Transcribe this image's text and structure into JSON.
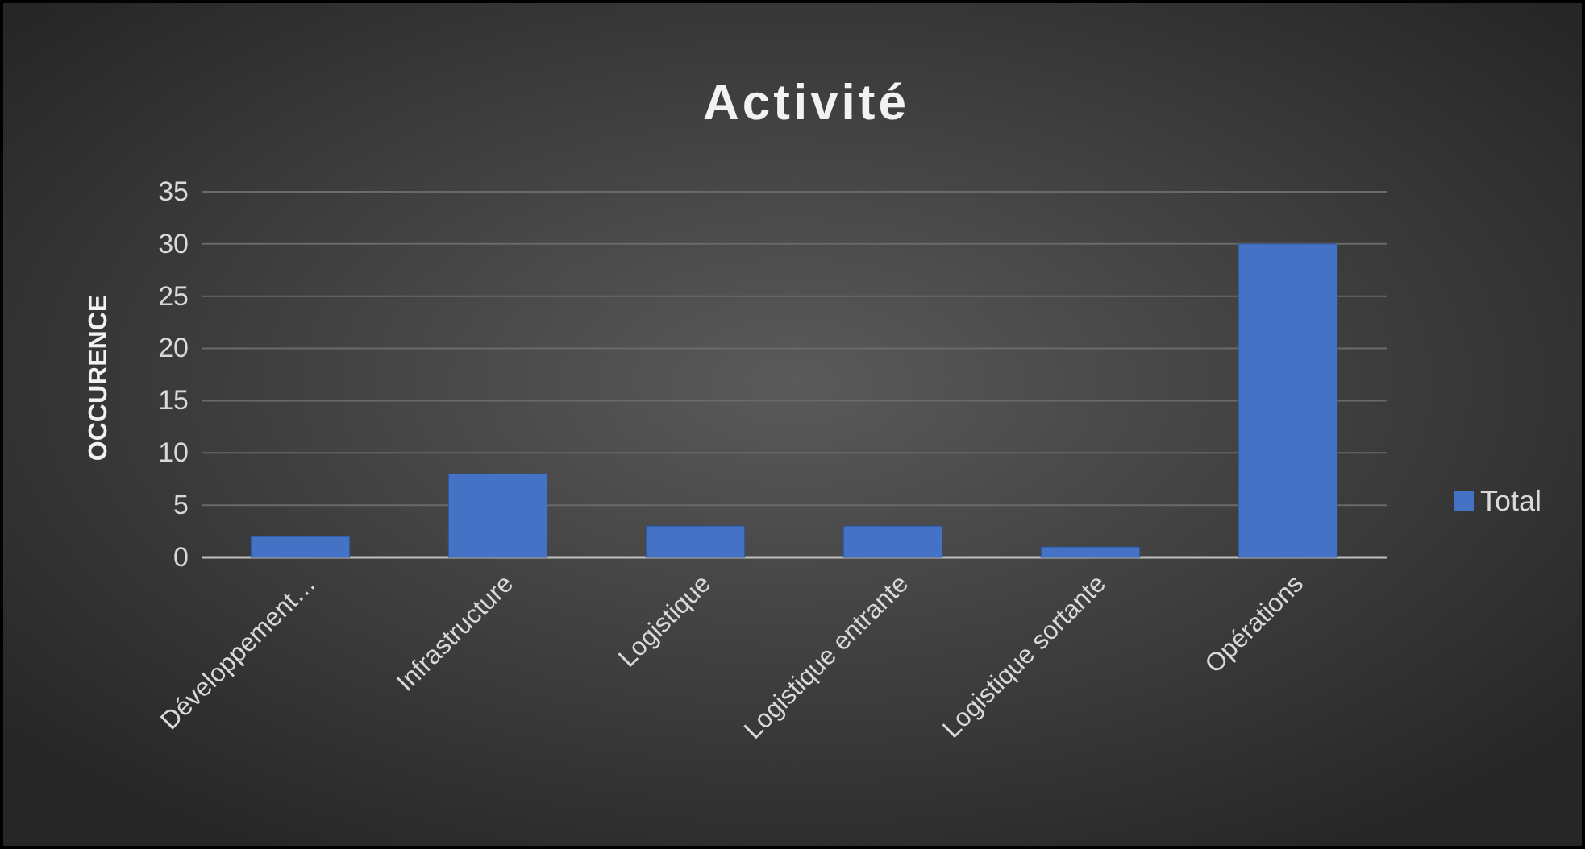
{
  "chart_data": {
    "type": "bar",
    "title": "Activité",
    "ylabel": "OCCURENCE",
    "categories": [
      "Développement…",
      "Infrastructure",
      "Logistique",
      "Logistique entrante",
      "Logistique sortante",
      "Opérations"
    ],
    "series": [
      {
        "name": "Total",
        "color": "#4472c4",
        "values": [
          2,
          8,
          3,
          3,
          1,
          30
        ]
      }
    ],
    "ylim": [
      0,
      35
    ],
    "yticks": [
      0,
      5,
      10,
      15,
      20,
      25,
      30,
      35
    ],
    "grid": "y",
    "legend": "right"
  }
}
